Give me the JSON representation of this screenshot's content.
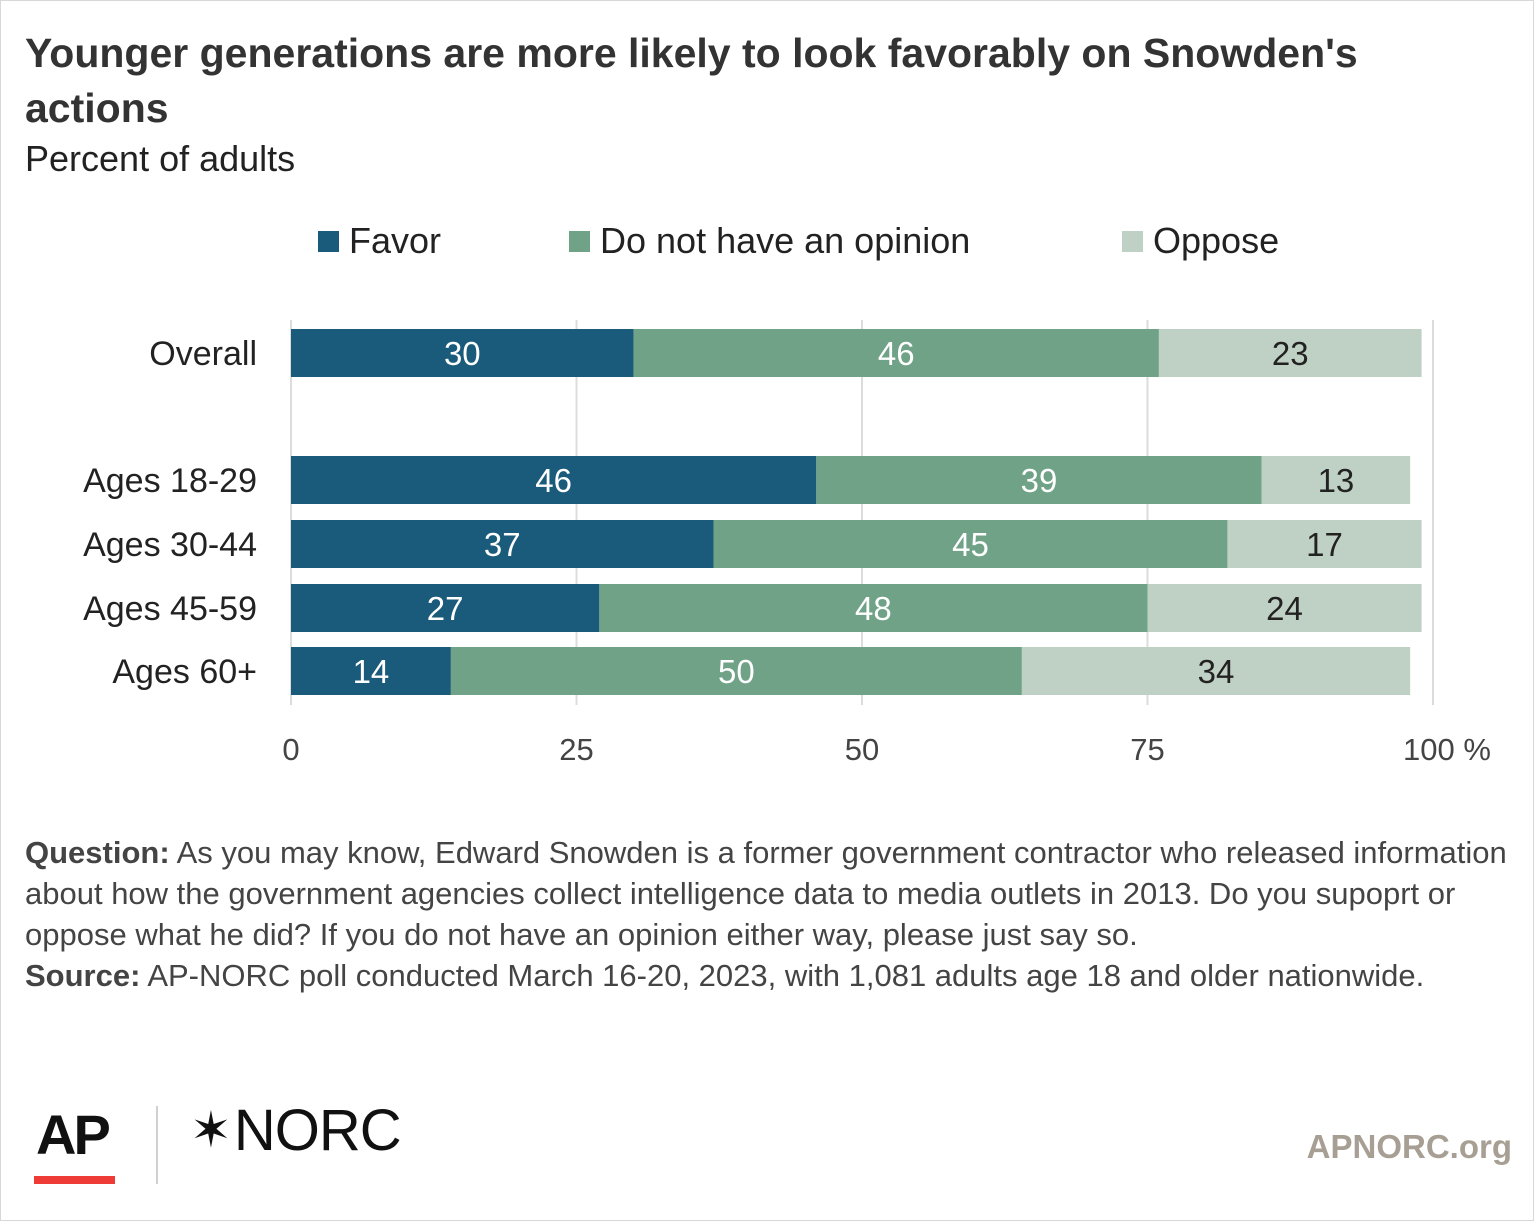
{
  "header": {
    "title": "Younger generations are more likely to look favorably on Snowden's actions",
    "subtitle": "Percent of adults"
  },
  "legend": [
    {
      "label": "Favor",
      "color": "#1a5a7a"
    },
    {
      "label": "Do not have an opinion",
      "color": "#6fa287"
    },
    {
      "label": "Oppose",
      "color": "#bfd1c4"
    }
  ],
  "chart_data": {
    "type": "bar",
    "orientation": "horizontal",
    "stacked": true,
    "categories": [
      "Overall",
      "Ages 18-29",
      "Ages 30-44",
      "Ages 45-59",
      "Ages 60+"
    ],
    "series": [
      {
        "name": "Favor",
        "color": "#1a5a7a",
        "values": [
          30,
          46,
          37,
          27,
          14
        ]
      },
      {
        "name": "Do not have an opinion",
        "color": "#6fa287",
        "values": [
          46,
          39,
          45,
          48,
          50
        ]
      },
      {
        "name": "Oppose",
        "color": "#bfd1c4",
        "values": [
          23,
          13,
          17,
          24,
          34
        ]
      }
    ],
    "xlim": [
      0,
      100
    ],
    "x_ticks": [
      "0",
      "25",
      "50",
      "75",
      "100 %"
    ],
    "grid": true,
    "legend_position": "top"
  },
  "footnote": {
    "question_label": "Question:",
    "question_text": " As you may know, Edward Snowden is a former government contractor who released information about how the government agencies collect intelligence data to media outlets in 2013. Do you supoprt or oppose what he did? If you do not have an opinion either way, please just say so.",
    "source_label": "Source:",
    "source_text": " AP-NORC poll conducted March 16-20, 2023, with 1,081 adults age 18 and older nationwide."
  },
  "branding": {
    "ap": "AP",
    "norc_star": "✶",
    "norc": "NORC",
    "site": "APNORC.org"
  }
}
